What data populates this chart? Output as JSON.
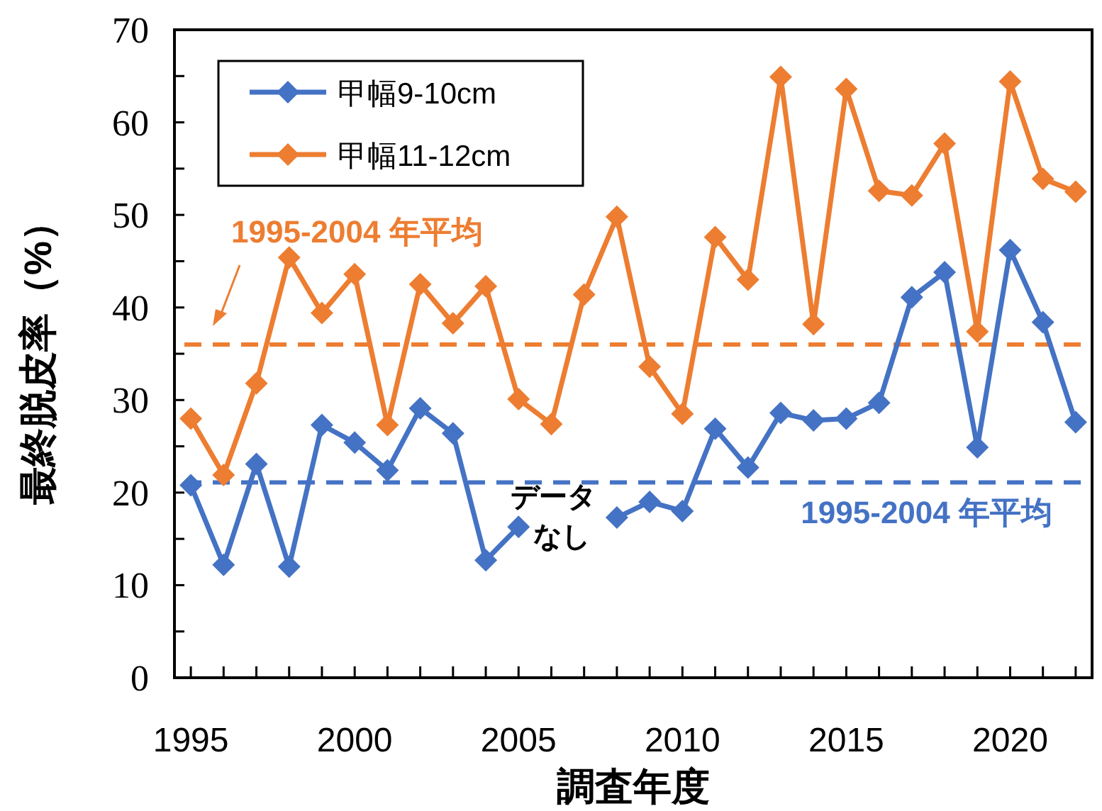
{
  "chart_data": {
    "type": "line",
    "xlabel": "調査年度",
    "ylabel": "最終脱皮率（%）",
    "x": [
      1995,
      1996,
      1997,
      1998,
      1999,
      2000,
      2001,
      2002,
      2003,
      2004,
      2005,
      2006,
      2007,
      2008,
      2009,
      2010,
      2011,
      2012,
      2013,
      2014,
      2015,
      2016,
      2017,
      2018,
      2019,
      2020,
      2021,
      2022
    ],
    "series": [
      {
        "name": "甲幅9-10cm",
        "color": "#4472c4",
        "values": [
          20.8,
          12.2,
          23.1,
          12.0,
          27.3,
          25.4,
          22.4,
          29.1,
          26.4,
          12.7,
          16.3,
          null,
          null,
          17.3,
          19.0,
          18.0,
          26.9,
          22.7,
          28.6,
          27.8,
          28.0,
          29.7,
          41.1,
          43.8,
          24.9,
          46.2,
          38.4,
          27.6
        ]
      },
      {
        "name": "甲幅11-12cm",
        "color": "#ed7d31",
        "values": [
          28.0,
          21.9,
          31.8,
          45.4,
          39.4,
          43.6,
          27.3,
          42.5,
          38.3,
          42.3,
          30.1,
          27.4,
          41.4,
          49.8,
          33.6,
          28.5,
          47.6,
          43.0,
          64.9,
          38.2,
          63.6,
          52.6,
          52.1,
          57.7,
          37.4,
          64.4,
          53.9,
          52.5
        ]
      }
    ],
    "ref_lines": [
      {
        "axis": "y",
        "value": 36.0,
        "label": "1995-2004 年平均",
        "color": "#ed7d31",
        "line_style": "dashed"
      },
      {
        "axis": "y",
        "value": 21.1,
        "label": "1995-2004 年平均",
        "color": "#4472c4",
        "line_style": "dashed"
      }
    ],
    "annotations": [
      "データなし"
    ],
    "xlim": [
      1994.5,
      2022.5
    ],
    "xticks": [
      1995,
      {
        "value": 1996,
        "label": null
      },
      {
        "value": 1997,
        "label": null
      },
      {
        "value": 1998,
        "label": null
      },
      {
        "value": 1999,
        "label": null
      },
      2000,
      {
        "value": 2001,
        "label": null
      },
      {
        "value": 2002,
        "label": null
      },
      {
        "value": 2003,
        "label": null
      },
      {
        "value": 2004,
        "label": null
      },
      2005,
      {
        "value": 2006,
        "label": null
      },
      {
        "value": 2007,
        "label": null
      },
      {
        "value": 2008,
        "label": null
      },
      {
        "value": 2009,
        "label": null
      },
      2010,
      {
        "value": 2011,
        "label": null
      },
      {
        "value": 2012,
        "label": null
      },
      {
        "value": 2013,
        "label": null
      },
      {
        "value": 2014,
        "label": null
      },
      2015,
      {
        "value": 2016,
        "label": null
      },
      {
        "value": 2017,
        "label": null
      },
      {
        "value": 2018,
        "label": null
      },
      {
        "value": 2019,
        "label": null
      },
      2020,
      {
        "value": 2021,
        "label": null
      },
      {
        "value": 2022,
        "label": null
      }
    ],
    "ylim": [
      0,
      70
    ],
    "yticks": [
      0,
      {
        "value": 5,
        "label": null
      },
      10,
      {
        "value": 15,
        "label": null
      },
      20,
      {
        "value": 25,
        "label": null
      },
      30,
      {
        "value": 35,
        "label": null
      },
      40,
      {
        "value": 45,
        "label": null
      },
      50,
      {
        "value": 55,
        "label": null
      },
      60,
      {
        "value": 65,
        "label": null
      },
      70
    ],
    "legend": "top left",
    "marker": "diamond",
    "line_style": "solid"
  }
}
